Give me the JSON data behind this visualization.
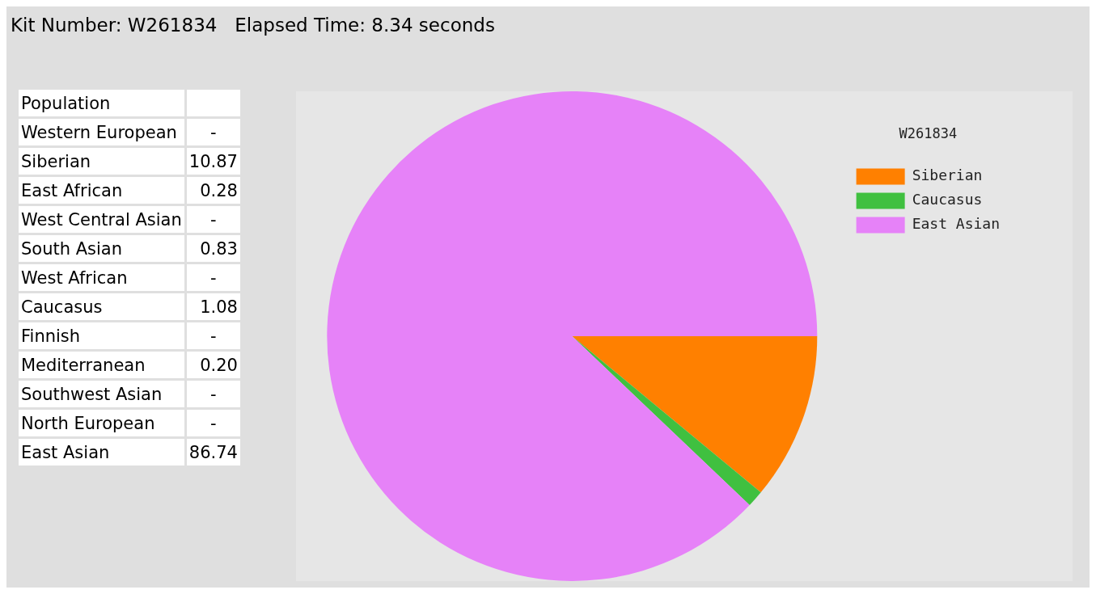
{
  "chart_data": [
    {
      "type": "other",
      "title": "Kit Number: W261834   Elapsed Time: 8.34 seconds",
      "ylabel": "Population",
      "categories": [
        "Western European",
        "Siberian",
        "East African",
        "West Central Asian",
        "South Asian",
        "West African",
        "Caucasus",
        "Finnish",
        "Mediterranean",
        "Southwest Asian",
        "North European",
        "East Asian"
      ],
      "values": [
        null,
        10.87,
        0.28,
        null,
        0.83,
        null,
        1.08,
        null,
        0.2,
        null,
        null,
        86.74
      ],
      "value_labels": [
        "-",
        "10.87",
        "0.28",
        "-",
        "0.83",
        "-",
        "1.08",
        "-",
        "0.20",
        "-",
        "-",
        "86.74"
      ]
    },
    {
      "type": "pie",
      "legend_title": "W261834",
      "legend": "top right",
      "categories": [
        "Siberian",
        "Caucasus",
        "East Asian"
      ],
      "values": [
        10.87,
        1.08,
        86.74
      ],
      "colors": [
        "#ff8000",
        "#40c040",
        "#e682f8"
      ]
    }
  ]
}
